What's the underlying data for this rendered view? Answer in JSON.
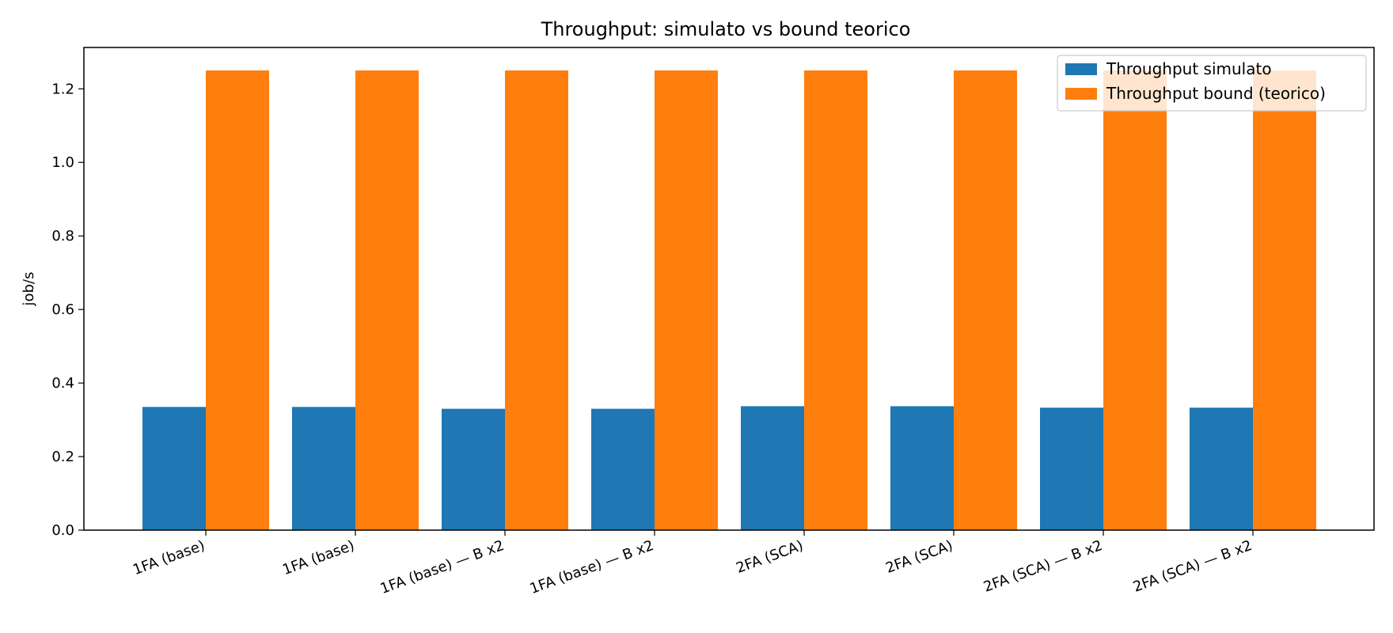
{
  "chart_data": {
    "type": "bar",
    "title": "Throughput: simulato vs bound teorico",
    "xlabel": "",
    "ylabel": "job/s",
    "categories": [
      "1FA (base)",
      "1FA (base)",
      "1FA (base) — B x2",
      "1FA (base) — B x2",
      "2FA (SCA)",
      "2FA (SCA)",
      "2FA (SCA) — B x2",
      "2FA (SCA) — B x2"
    ],
    "series": [
      {
        "name": "Throughput simulato",
        "color": "#1f77b4",
        "values": [
          0.335,
          0.335,
          0.33,
          0.33,
          0.337,
          0.337,
          0.333,
          0.333
        ]
      },
      {
        "name": "Throughput bound (teorico)",
        "color": "#ff7f0e",
        "values": [
          1.25,
          1.25,
          1.25,
          1.25,
          1.25,
          1.25,
          1.25,
          1.25
        ]
      }
    ],
    "ylim": [
      0,
      1.3125
    ],
    "yticks": [
      0.0,
      0.2,
      0.4,
      0.6,
      0.8,
      1.0,
      1.2
    ],
    "ytick_labels": [
      "0.0",
      "0.2",
      "0.4",
      "0.6",
      "0.8",
      "1.0",
      "1.2"
    ],
    "grid": false,
    "legend_position": "top-right"
  }
}
